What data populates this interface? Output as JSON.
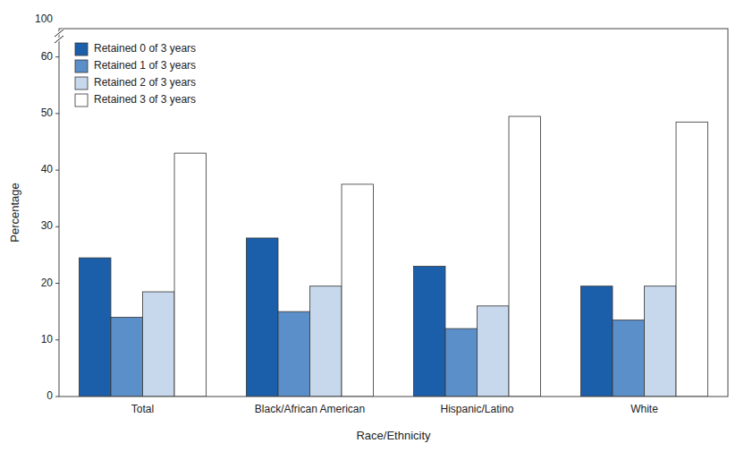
{
  "chart_data": {
    "type": "bar",
    "categories": [
      "Total",
      "Black/African American",
      "Hispanic/Latino",
      "White"
    ],
    "series": [
      {
        "name": "Retained 0 of 3 years",
        "color": "#1B5FAB",
        "values": [
          24.5,
          28.0,
          23.0,
          19.5
        ]
      },
      {
        "name": "Retained 1 of 3 years",
        "color": "#5B8FC9",
        "values": [
          14.0,
          15.0,
          12.0,
          13.5
        ]
      },
      {
        "name": "Retained 2 of 3 years",
        "color": "#C8D8EC",
        "values": [
          18.5,
          19.5,
          16.0,
          19.5
        ]
      },
      {
        "name": "Retained 3 of 3 years",
        "color": "#FFFFFF",
        "values": [
          43.0,
          37.5,
          49.5,
          48.5
        ]
      }
    ],
    "x_label": "Race/Ethnicity",
    "y_label": "Percentage",
    "ylim": [
      0,
      65
    ],
    "yticks": [
      0,
      10,
      20,
      30,
      40,
      50,
      60
    ],
    "annotations": [
      {
        "text": "100"
      }
    ],
    "grid": false,
    "legend": "upper left"
  }
}
